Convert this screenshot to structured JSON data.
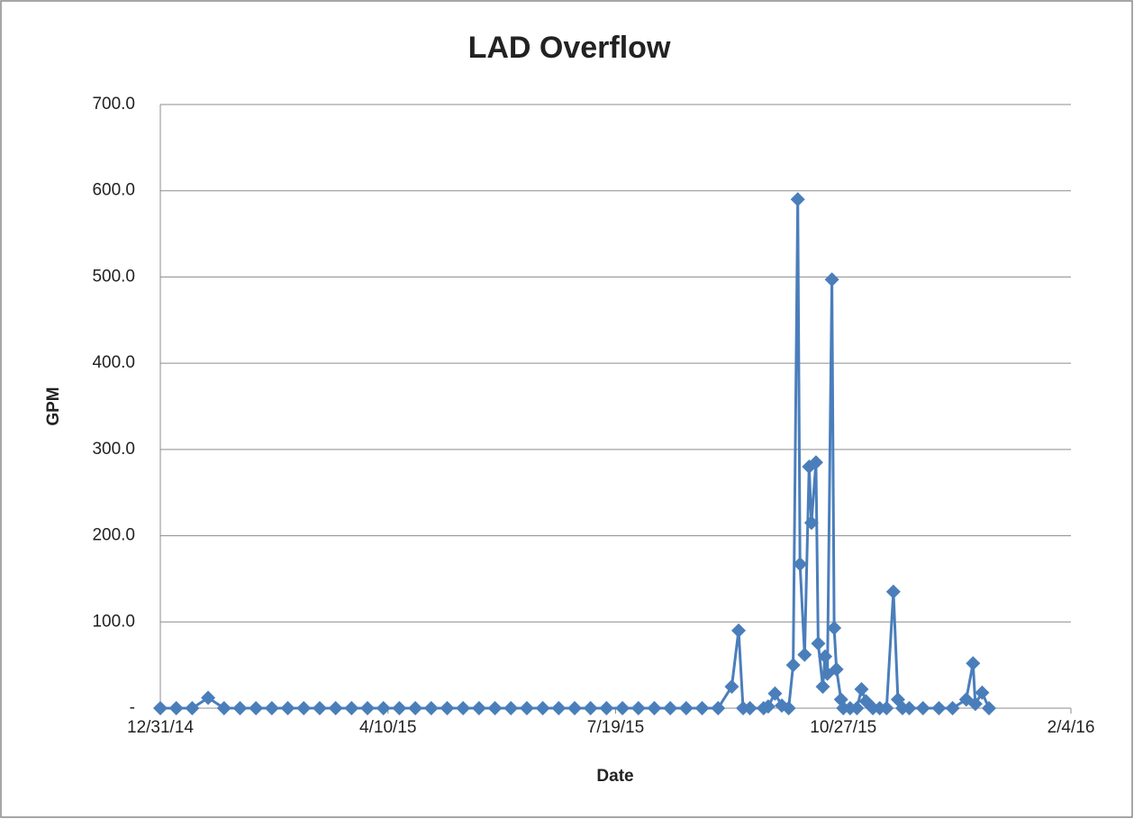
{
  "chart_data": {
    "type": "line",
    "title": "LAD Overflow",
    "x_label": "Date",
    "y_label": "GPM",
    "color": "#4a7ebb",
    "x": [
      "12/31/14",
      "1/7/15",
      "1/14/15",
      "1/21/15",
      "1/28/15",
      "2/4/15",
      "2/11/15",
      "2/18/15",
      "2/25/15",
      "3/4/15",
      "3/11/15",
      "3/18/15",
      "3/25/15",
      "4/1/15",
      "4/8/15",
      "4/15/15",
      "4/22/15",
      "4/29/15",
      "5/6/15",
      "5/13/15",
      "5/20/15",
      "5/27/15",
      "6/3/15",
      "6/10/15",
      "6/17/15",
      "6/24/15",
      "7/1/15",
      "7/8/15",
      "7/15/15",
      "7/22/15",
      "7/29/15",
      "8/5/15",
      "8/12/15",
      "8/19/15",
      "8/26/15",
      "9/2/15",
      "9/8/15",
      "9/11/15",
      "9/13/15",
      "9/16/15",
      "9/22/15",
      "9/24/15",
      "9/27/15",
      "9/30/15",
      "10/3/15",
      "10/5/15",
      "10/7/15",
      "10/8/15",
      "10/10/15",
      "10/12/15",
      "10/13/15",
      "10/15/15",
      "10/16/15",
      "10/18/15",
      "10/19/15",
      "10/20/15",
      "10/22/15",
      "10/23/15",
      "10/24/15",
      "10/26/15",
      "10/27/15",
      "10/30/15",
      "11/2/15",
      "11/4/15",
      "11/6/15",
      "11/9/15",
      "11/12/15",
      "11/15/15",
      "11/18/15",
      "11/20/15",
      "11/22/15",
      "11/25/15",
      "12/1/15",
      "12/8/15",
      "12/14/15",
      "12/20/15",
      "12/23/15",
      "12/24/15",
      "12/27/15",
      "12/30/15"
    ],
    "values": [
      0,
      0,
      0,
      12,
      0,
      0,
      0,
      0,
      0,
      0,
      0,
      0,
      0,
      0,
      0,
      0,
      0,
      0,
      0,
      0,
      0,
      0,
      0,
      0,
      0,
      0,
      0,
      0,
      0,
      0,
      0,
      0,
      0,
      0,
      0,
      0,
      25,
      90,
      0,
      0,
      0,
      2,
      17,
      3,
      0,
      50,
      590,
      167,
      62,
      280,
      215,
      285,
      75,
      25,
      60,
      40,
      497,
      93,
      45,
      10,
      0,
      0,
      0,
      22,
      8,
      0,
      0,
      0,
      135,
      10,
      0,
      0,
      0,
      0,
      0,
      10,
      52,
      5,
      18,
      0
    ],
    "xlim": [
      "12/31/14",
      "2/4/16"
    ],
    "xticks": [
      "12/31/14",
      "4/10/15",
      "7/19/15",
      "10/27/15",
      "2/4/16"
    ],
    "ylim": [
      0,
      700
    ],
    "yticks": [
      {
        "value": 0,
        "label": "-"
      },
      {
        "value": 100,
        "label": "100.0"
      },
      {
        "value": 200,
        "label": "200.0"
      },
      {
        "value": 300,
        "label": "300.0"
      },
      {
        "value": 400,
        "label": "400.0"
      },
      {
        "value": 500,
        "label": "500.0"
      },
      {
        "value": 600,
        "label": "600.0"
      },
      {
        "value": 700,
        "label": "700.0"
      }
    ],
    "grid": true
  }
}
